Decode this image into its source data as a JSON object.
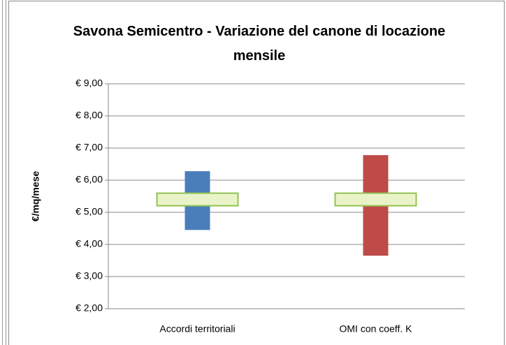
{
  "chart_data": {
    "type": "floating_bar",
    "title": "Savona Semicentro - Variazione del canone di locazione mensile",
    "y_label": "€/mq/mese",
    "categories": [
      "Accordi territoriali",
      "OMI con coeff. K"
    ],
    "low": [
      4.45,
      3.65
    ],
    "high": [
      6.28,
      6.78
    ],
    "marker": [
      5.4,
      5.4
    ],
    "colors": [
      "#4a7ebb",
      "#be4b48"
    ],
    "marker_color": "#eaf3c8",
    "marker_stroke": "#92c353",
    "ylim": [
      2,
      9
    ],
    "yticks": [
      {
        "value": 2,
        "label": "€ 2,00"
      },
      {
        "value": 3,
        "label": "€ 3,00"
      },
      {
        "value": 4,
        "label": "€ 4,00"
      },
      {
        "value": 5,
        "label": "€ 5,00"
      },
      {
        "value": 6,
        "label": "€ 6,00"
      },
      {
        "value": 7,
        "label": "€ 7,00"
      },
      {
        "value": 8,
        "label": "€ 8,00"
      },
      {
        "value": 9,
        "label": "€ 9,00"
      }
    ],
    "grid": true
  }
}
